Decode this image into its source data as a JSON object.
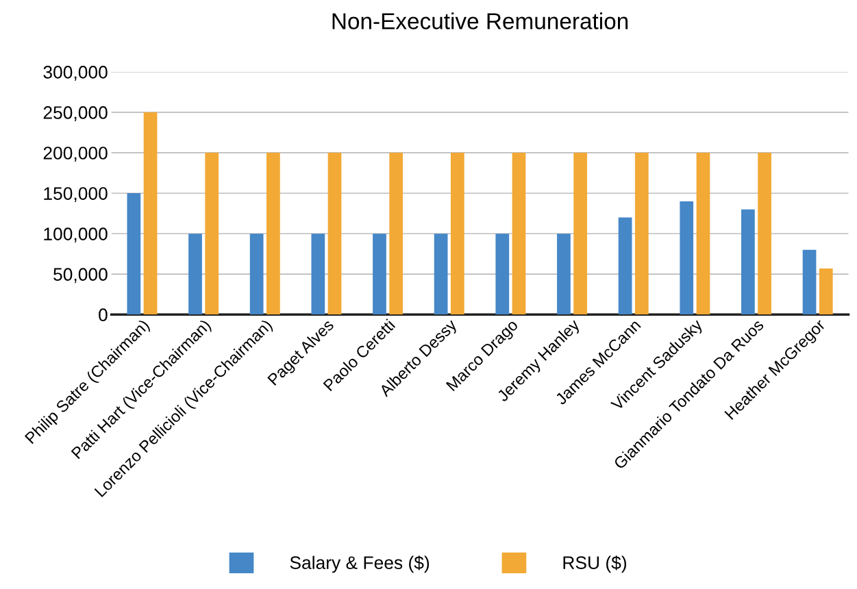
{
  "chart_data": {
    "type": "bar",
    "title": "Non-Executive Remuneration",
    "categories": [
      "Philip Satre (Chairman)",
      "Patti Hart (Vice-Chairman)",
      "Lorenzo Pellicioli (Vice-Chairman)",
      "Paget Alves",
      "Paolo Ceretti",
      "Alberto Dessy",
      "Marco Drago",
      "Jeremy Hanley",
      "James McCann",
      "Vincent Sadusky",
      "Gianmario Tondato Da Ruos",
      "Heather McGregor"
    ],
    "series": [
      {
        "name": "Salary & Fees ($)",
        "color": "#4587c7",
        "values": [
          150000,
          100000,
          100000,
          100000,
          100000,
          100000,
          100000,
          100000,
          120000,
          140000,
          130000,
          80000
        ]
      },
      {
        "name": "RSU ($)",
        "color": "#f2a935",
        "values": [
          250000,
          200000,
          200000,
          200000,
          200000,
          200000,
          200000,
          200000,
          200000,
          200000,
          200000,
          57000
        ]
      }
    ],
    "ylim": [
      0,
      300000
    ],
    "yticks": [
      {
        "value": 0,
        "label": "0"
      },
      {
        "value": 50000,
        "label": "50,000"
      },
      {
        "value": 100000,
        "label": "100,000"
      },
      {
        "value": 150000,
        "label": "150,000"
      },
      {
        "value": 200000,
        "label": "200,000"
      },
      {
        "value": 250000,
        "label": "250,000"
      },
      {
        "value": 300000,
        "label": "300,000"
      }
    ],
    "grid": "y",
    "legend": "bottom"
  }
}
